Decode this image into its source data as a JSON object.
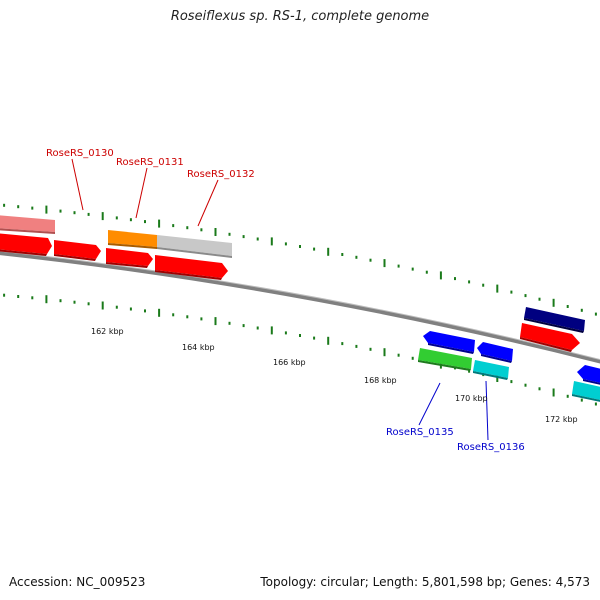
{
  "title": "Roseiflexus sp. RS-1, complete genome",
  "accession": "Accession: NC_009523",
  "summary": "Topology: circular; Length: 5,801,598 bp; Genes: 4,573",
  "colors": {
    "backbone": "#808080",
    "label_forward": "#cc0000",
    "label_reverse": "#0000cc",
    "tick": "#1a7a1a",
    "red": "#ff0000",
    "pink": "#f08080",
    "orange": "#ff8c00",
    "gray": "#c8c8c8",
    "navy": "#000080",
    "blue": "#0000ff",
    "green": "#32cd32",
    "cyan": "#00ced1"
  },
  "kbp_labels": [
    "162 kbp",
    "164 kbp",
    "166 kbp",
    "168 kbp",
    "170 kbp",
    "172 kbp"
  ],
  "gene_labels": [
    {
      "text": "RoseRS_0130",
      "strand": "forward"
    },
    {
      "text": "RoseRS_0131",
      "strand": "forward"
    },
    {
      "text": "RoseRS_0132",
      "strand": "forward"
    },
    {
      "text": "RoseRS_0135",
      "strand": "reverse"
    },
    {
      "text": "RoseRS_0136",
      "strand": "reverse"
    }
  ]
}
